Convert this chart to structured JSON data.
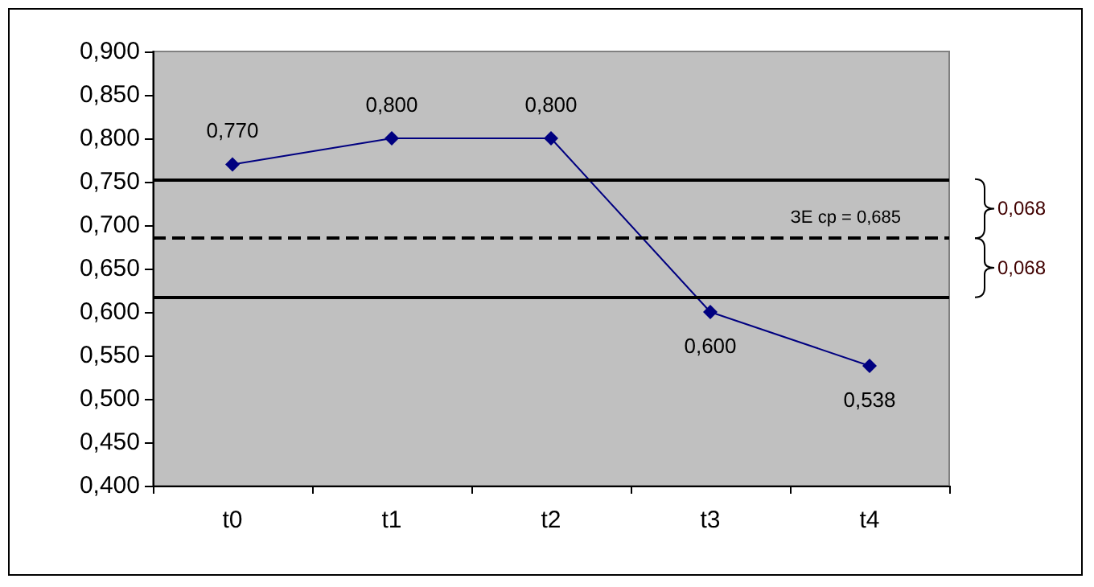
{
  "chart_data": {
    "type": "line",
    "categories": [
      "t0",
      "t1",
      "t2",
      "t3",
      "t4"
    ],
    "series": [
      {
        "color": "#000080",
        "values": [
          0.77,
          0.8,
          0.8,
          0.6,
          0.538
        ],
        "value_labels": [
          "0,770",
          "0,800",
          "0,800",
          "0,600",
          "0,538"
        ]
      }
    ],
    "ylim": [
      0.4,
      0.9
    ],
    "yticks": [
      {
        "value": 0.4,
        "label": "0,400"
      },
      {
        "value": 0.45,
        "label": "0,450"
      },
      {
        "value": 0.5,
        "label": "0,500"
      },
      {
        "value": 0.55,
        "label": "0,550"
      },
      {
        "value": 0.6,
        "label": "0,600"
      },
      {
        "value": 0.65,
        "label": "0,650"
      },
      {
        "value": 0.7,
        "label": "0,700"
      },
      {
        "value": 0.75,
        "label": "0,750"
      },
      {
        "value": 0.8,
        "label": "0,800"
      },
      {
        "value": 0.85,
        "label": "0,850"
      },
      {
        "value": 0.9,
        "label": "0,900"
      }
    ],
    "ref_lines": [
      {
        "axis": "y",
        "value": 0.753,
        "label": null,
        "color": "#000000",
        "line_style": "solid"
      },
      {
        "axis": "y",
        "value": 0.685,
        "label": "ЗЕ ср = 0,685",
        "color": "#000000",
        "line_style": "dashed"
      },
      {
        "axis": "y",
        "value": 0.617,
        "label": null,
        "color": "#000000",
        "line_style": "solid"
      }
    ],
    "annotations": [
      "0,068",
      "0,068"
    ],
    "grid": false,
    "marker": "diamond",
    "line_style": "solid"
  }
}
